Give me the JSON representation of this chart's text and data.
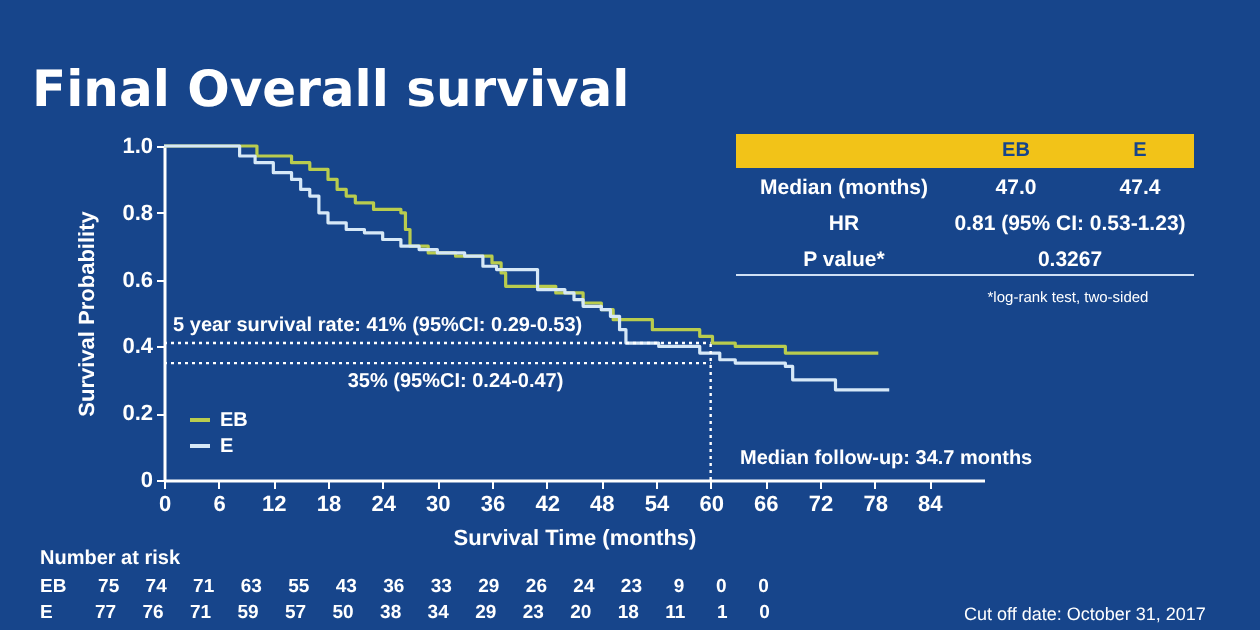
{
  "chart_data": {
    "type": "step",
    "title": "Final Overall survival",
    "xlabel": "Survival Time (months)",
    "ylabel": "Survival Probability",
    "xlim": [
      0,
      90
    ],
    "xticks": [
      0,
      6,
      12,
      18,
      24,
      30,
      36,
      42,
      48,
      54,
      60,
      66,
      72,
      78,
      84
    ],
    "ylim": [
      0,
      1
    ],
    "yticks": [
      0,
      0.2,
      0.4,
      0.6,
      0.8,
      {
        "value": 1,
        "label": "1.0"
      }
    ],
    "grid": false,
    "legend": "bottom left",
    "marker": "none",
    "series": [
      {
        "name": "EB",
        "color": "#b9cc4e",
        "x": [
          0,
          10.2,
          14,
          16,
          18,
          19,
          20,
          21,
          23,
          26,
          26.5,
          27,
          29,
          32,
          36,
          37,
          37.5,
          43,
          46,
          48,
          49.3,
          53.6,
          58.8,
          60.2,
          62.7,
          68.2,
          78.4
        ],
        "values": [
          1,
          0.97,
          0.95,
          0.93,
          0.9,
          0.87,
          0.85,
          0.83,
          0.81,
          0.8,
          0.75,
          0.7,
          0.68,
          0.67,
          0.65,
          0.62,
          0.58,
          0.56,
          0.53,
          0.51,
          0.48,
          0.45,
          0.43,
          0.41,
          0.4,
          0.38,
          0.38
        ]
      },
      {
        "name": "E",
        "color": "#d6e8f7",
        "x": [
          0,
          8.3,
          10,
          12,
          14,
          15,
          16,
          17,
          18,
          20,
          22,
          24,
          26,
          28,
          30,
          33,
          35,
          36.5,
          41,
          44,
          45,
          46,
          48,
          49,
          50,
          50.7,
          54.3,
          58.8,
          61,
          62.7,
          68.2,
          69,
          73.7,
          79.6
        ],
        "values": [
          1,
          0.97,
          0.95,
          0.92,
          0.9,
          0.87,
          0.85,
          0.8,
          0.77,
          0.75,
          0.74,
          0.72,
          0.7,
          0.69,
          0.68,
          0.67,
          0.64,
          0.63,
          0.57,
          0.56,
          0.54,
          0.52,
          0.51,
          0.49,
          0.45,
          0.41,
          0.4,
          0.38,
          0.36,
          0.35,
          0.34,
          0.3,
          0.27,
          0.27
        ]
      }
    ],
    "ref_lines": [
      {
        "axis": "y",
        "value": 0.41,
        "label": "5 year survival rate:  41% (95%CI: 0.29-0.53)",
        "line_style": "dotted"
      },
      {
        "axis": "y",
        "value": 0.35,
        "label": "35% (95%CI: 0.24-0.47)",
        "line_style": "dotted"
      },
      {
        "axis": "x",
        "value": 60,
        "line_style": "dotted"
      }
    ],
    "annotations": [
      "EB",
      "E",
      "Median (months)",
      "47.0",
      "47.4",
      "HR",
      "0.81 (95% CI: 0.53-1.23)",
      "P value*",
      "0.3267",
      "*log-rank test, two-sided",
      "Number at risk",
      "EB      75     74     71     63     55     43     36     33     29     26     24     23      9      0      0",
      "E        77     76     71     59     57     50     38     34     29     23     20     18     11      1      0",
      "Cut off date: October 31, 2017",
      "Median follow-up: 34.7 months"
    ]
  }
}
